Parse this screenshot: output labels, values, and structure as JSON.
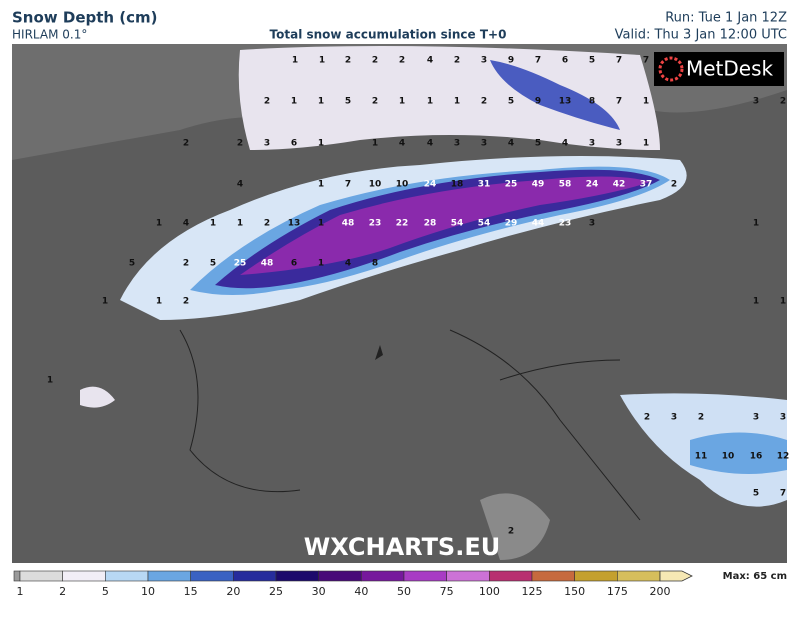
{
  "header": {
    "title": "Snow Depth (cm)",
    "model": "HIRLAM 0.1°",
    "subtitle": "Total snow accumulation since T+0",
    "run": "Run: Tue 1 Jan 12Z",
    "valid": "Valid: Thu 3 Jan 12:00 UTC"
  },
  "map": {
    "logo": "MetDesk",
    "watermark": "WXCHARTS.EU",
    "labels": [
      1,
      1,
      2,
      2,
      2,
      4,
      2,
      3,
      9,
      7,
      6,
      5,
      7,
      7,
      2,
      1,
      1,
      5,
      2,
      1,
      1,
      1,
      2,
      5,
      9,
      13,
      8,
      7,
      1,
      3,
      2,
      2,
      2,
      3,
      6,
      1,
      1,
      4,
      4,
      3,
      3,
      4,
      5,
      4,
      3,
      3,
      1,
      4,
      1,
      7,
      10,
      10,
      24,
      18,
      31,
      25,
      49,
      58,
      24,
      42,
      37,
      2,
      1,
      4,
      1,
      1,
      2,
      13,
      1,
      48,
      23,
      22,
      28,
      54,
      54,
      29,
      44,
      23,
      3,
      1,
      5,
      2,
      5,
      25,
      48,
      6,
      1,
      4,
      8,
      1,
      1,
      2,
      1,
      1,
      1,
      2,
      3,
      2,
      3,
      3,
      11,
      10,
      16,
      12,
      5,
      7,
      2
    ]
  },
  "legend": {
    "ticks": [
      1,
      2,
      5,
      10,
      15,
      20,
      25,
      30,
      40,
      50,
      75,
      100,
      125,
      150,
      175,
      200
    ],
    "colors": [
      "#9a9a9a",
      "#dcdcdc",
      "#f2eef6",
      "#b8d8f4",
      "#6aa6e2",
      "#3a62c2",
      "#262c9c",
      "#1c0a6c",
      "#480a78",
      "#76189c",
      "#a83cc4",
      "#cc72d6",
      "#b83070",
      "#c66a3e",
      "#c4a02e",
      "#d6be5c",
      "#f6e8b4"
    ],
    "max": "Max: 65 cm"
  }
}
